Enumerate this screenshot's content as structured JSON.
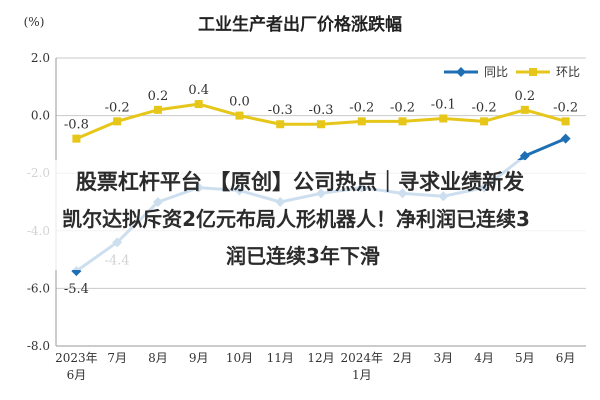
{
  "chart_data": {
    "type": "line",
    "title": "工业生产者出厂价格涨跌幅",
    "ylabel": "(%)",
    "ylim": [
      -8.0,
      2.0
    ],
    "yticks": [
      "2.0",
      "0.0",
      "-2.0",
      "-4.0",
      "-6.0",
      "-8.0"
    ],
    "categories": [
      "2023年 6月",
      "7月",
      "8月",
      "9月",
      "10月",
      "11月",
      "12月",
      "2024年 1月",
      "2月",
      "3月",
      "4月",
      "5月",
      "6月"
    ],
    "category_lines": [
      [
        "2023年",
        "6月"
      ],
      [
        "7月"
      ],
      [
        "8月"
      ],
      [
        "9月"
      ],
      [
        "10月"
      ],
      [
        "11月"
      ],
      [
        "12月"
      ],
      [
        "2024年",
        "1月"
      ],
      [
        "2月"
      ],
      [
        "3月"
      ],
      [
        "4月"
      ],
      [
        "5月"
      ],
      [
        "6月"
      ]
    ],
    "series": [
      {
        "name": "同比",
        "color": "#1f6fb5",
        "values": [
          -5.4,
          -4.4,
          -3.0,
          -2.5,
          -2.6,
          -3.0,
          -2.7,
          -2.5,
          -2.7,
          -2.8,
          -2.5,
          -1.4,
          -0.8
        ],
        "labels": [
          "-5.4",
          "-4.4",
          "",
          "",
          "",
          "",
          "",
          "",
          "",
          "",
          "",
          "",
          ""
        ]
      },
      {
        "name": "环比",
        "color": "#e6c619",
        "values": [
          -0.8,
          -0.2,
          0.2,
          0.4,
          0.0,
          -0.3,
          -0.3,
          -0.2,
          -0.2,
          -0.1,
          -0.2,
          0.2,
          -0.2
        ],
        "labels": [
          "-0.8",
          "-0.2",
          "0.2",
          "0.4",
          "0.0",
          "-0.3",
          "-0.3",
          "-0.2",
          "-0.2",
          "-0.1",
          "-0.2",
          "0.2",
          "-0.2"
        ]
      }
    ],
    "grid": true,
    "legend_position": "top-right"
  },
  "overlay": {
    "line1": "股票杠杆平台 【原创】公司热点｜寻求业绩新发",
    "line2": "凯尔达拟斥资2亿元布局人形机器人！净利润已连续3",
    "line3": "润已连续3年下滑"
  }
}
